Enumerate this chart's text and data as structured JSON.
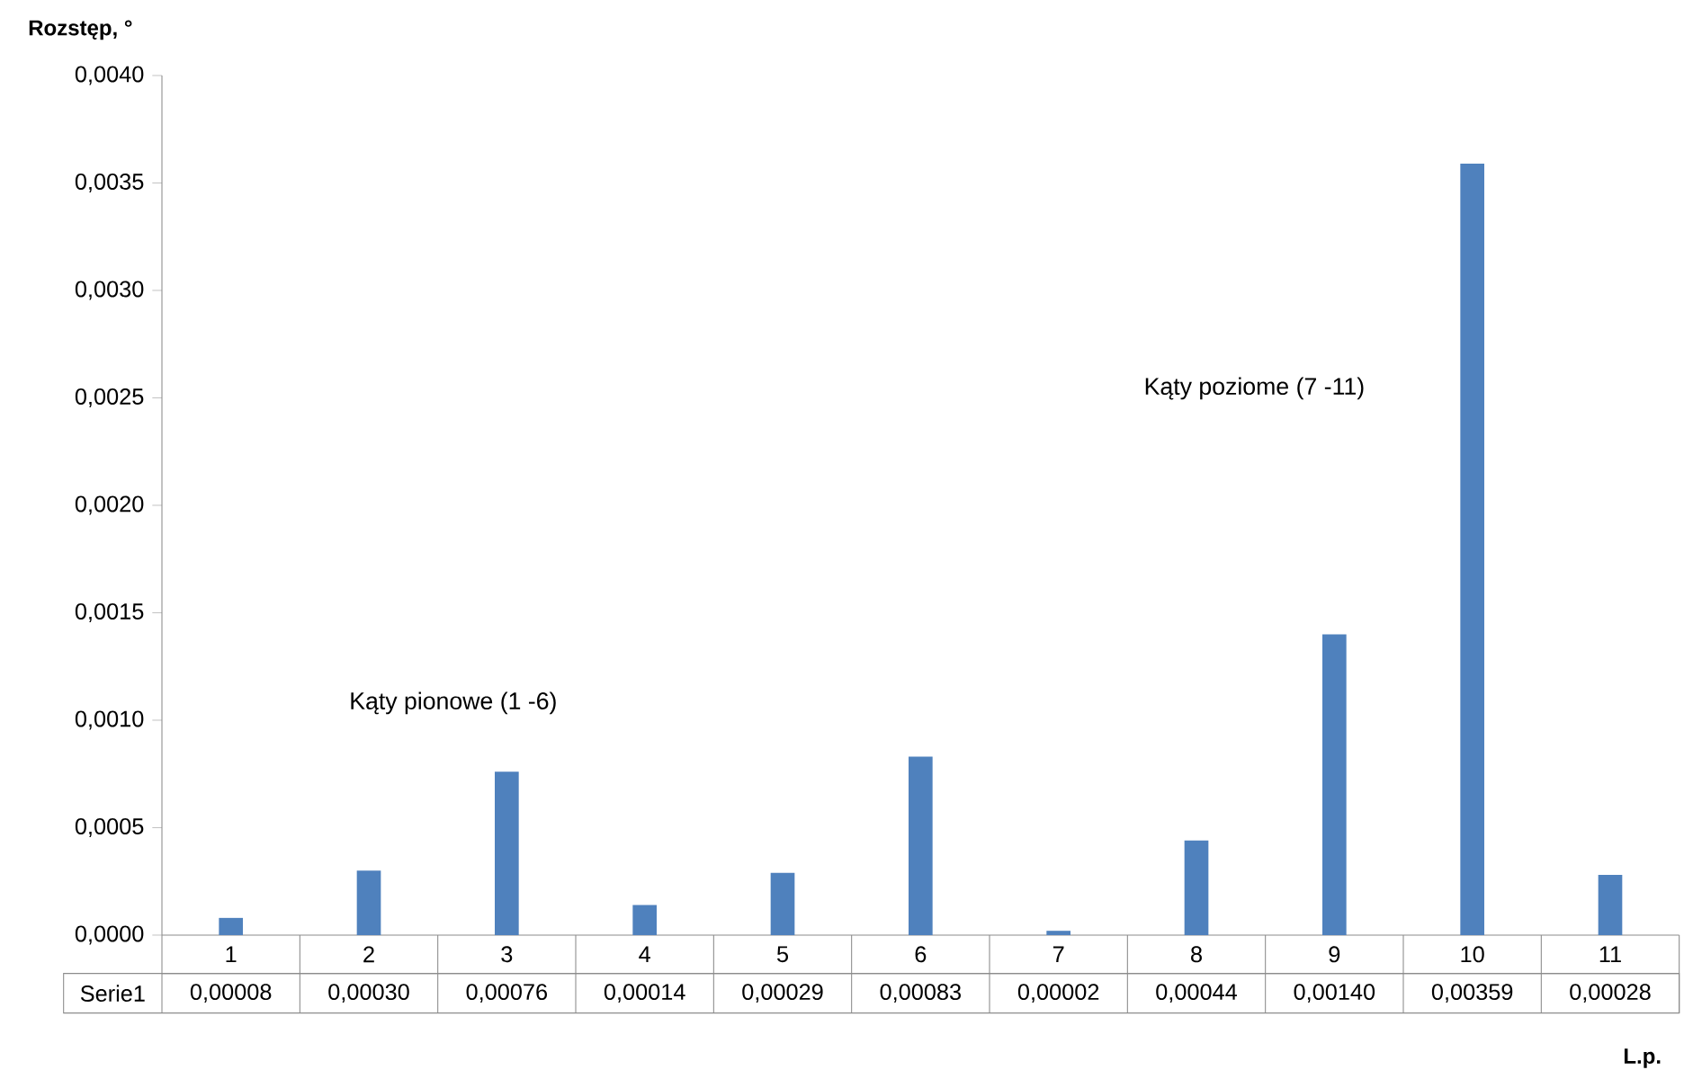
{
  "chart_data": {
    "type": "bar",
    "xlabel": "L.p.",
    "ylabel": "Rozstęp, °",
    "categories": [
      "1",
      "2",
      "3",
      "4",
      "5",
      "6",
      "7",
      "8",
      "9",
      "10",
      "11"
    ],
    "series": [
      {
        "name": "Serie1",
        "color": "#4f81bd",
        "values": [
          8e-05,
          0.0003,
          0.00076,
          0.00014,
          0.00029,
          0.00083,
          2e-05,
          0.00044,
          0.0014,
          0.00359,
          0.00028
        ]
      }
    ],
    "value_labels": [
      "0,00008",
      "0,00030",
      "0,00076",
      "0,00014",
      "0,00029",
      "0,00083",
      "0,00002",
      "0,00044",
      "0,00140",
      "0,00359",
      "0,00028"
    ],
    "ylim": [
      0,
      0.004
    ],
    "yticks": [
      {
        "value": 0,
        "label": "0,0000"
      },
      {
        "value": 0.0005,
        "label": "0,0005"
      },
      {
        "value": 0.001,
        "label": "0,0010"
      },
      {
        "value": 0.0015,
        "label": "0,0015"
      },
      {
        "value": 0.002,
        "label": "0,0020"
      },
      {
        "value": 0.0025,
        "label": "0,0025"
      },
      {
        "value": 0.003,
        "label": "0,0030"
      },
      {
        "value": 0.0035,
        "label": "0,0035"
      },
      {
        "value": 0.004,
        "label": "0,0040"
      }
    ],
    "annotations": [
      "Kąty pionowe (1 -6)",
      "Kąty poziome (7 -11)"
    ],
    "grid": false
  }
}
